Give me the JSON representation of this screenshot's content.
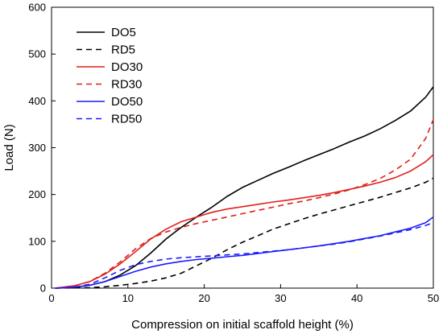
{
  "chart_data": {
    "type": "line",
    "title": "",
    "xlabel": "Compression on initial scaffold height (%)",
    "ylabel": "Load (N)",
    "xlim": [
      0,
      50
    ],
    "ylim": [
      0,
      600
    ],
    "xticks": [
      0,
      10,
      20,
      30,
      40,
      50
    ],
    "yticks": [
      0,
      100,
      200,
      300,
      400,
      500,
      600
    ],
    "grid": false,
    "legend_position": "top-left",
    "series": [
      {
        "name": "DO5",
        "color": "#000000",
        "dash": "solid",
        "points": [
          [
            0.5,
            0
          ],
          [
            3,
            2
          ],
          [
            5,
            6
          ],
          [
            7,
            14
          ],
          [
            9,
            28
          ],
          [
            11,
            48
          ],
          [
            13,
            75
          ],
          [
            15,
            105
          ],
          [
            17,
            130
          ],
          [
            19,
            152
          ],
          [
            21,
            173
          ],
          [
            23,
            196
          ],
          [
            25,
            215
          ],
          [
            27,
            230
          ],
          [
            29,
            245
          ],
          [
            31,
            258
          ],
          [
            33,
            272
          ],
          [
            35,
            285
          ],
          [
            37,
            298
          ],
          [
            39,
            312
          ],
          [
            41,
            325
          ],
          [
            43,
            340
          ],
          [
            45,
            358
          ],
          [
            47,
            378
          ],
          [
            49,
            408
          ],
          [
            50,
            430
          ]
        ]
      },
      {
        "name": "RD5",
        "color": "#000000",
        "dash": "dashed",
        "points": [
          [
            0.5,
            0
          ],
          [
            5,
            1
          ],
          [
            7,
            3
          ],
          [
            9,
            6
          ],
          [
            11,
            10
          ],
          [
            13,
            15
          ],
          [
            15,
            22
          ],
          [
            17,
            32
          ],
          [
            19,
            48
          ],
          [
            21,
            64
          ],
          [
            23,
            82
          ],
          [
            25,
            98
          ],
          [
            27,
            112
          ],
          [
            29,
            126
          ],
          [
            31,
            137
          ],
          [
            33,
            148
          ],
          [
            35,
            158
          ],
          [
            37,
            167
          ],
          [
            39,
            176
          ],
          [
            41,
            185
          ],
          [
            43,
            194
          ],
          [
            45,
            204
          ],
          [
            47,
            214
          ],
          [
            49,
            226
          ],
          [
            50,
            235
          ]
        ]
      },
      {
        "name": "DO30",
        "color": "#e0201c",
        "dash": "solid",
        "points": [
          [
            0.5,
            0
          ],
          [
            3,
            5
          ],
          [
            5,
            14
          ],
          [
            7,
            30
          ],
          [
            9,
            52
          ],
          [
            11,
            78
          ],
          [
            13,
            105
          ],
          [
            15,
            126
          ],
          [
            17,
            142
          ],
          [
            19,
            152
          ],
          [
            21,
            162
          ],
          [
            23,
            169
          ],
          [
            25,
            174
          ],
          [
            27,
            179
          ],
          [
            29,
            184
          ],
          [
            31,
            188
          ],
          [
            33,
            193
          ],
          [
            35,
            198
          ],
          [
            37,
            204
          ],
          [
            39,
            211
          ],
          [
            41,
            218
          ],
          [
            43,
            226
          ],
          [
            45,
            236
          ],
          [
            47,
            250
          ],
          [
            49,
            270
          ],
          [
            50,
            285
          ]
        ]
      },
      {
        "name": "RD30",
        "color": "#e0201c",
        "dash": "dashed",
        "points": [
          [
            0.5,
            0
          ],
          [
            3,
            5
          ],
          [
            5,
            14
          ],
          [
            7,
            32
          ],
          [
            9,
            56
          ],
          [
            11,
            84
          ],
          [
            13,
            106
          ],
          [
            15,
            120
          ],
          [
            17,
            130
          ],
          [
            19,
            138
          ],
          [
            21,
            145
          ],
          [
            23,
            152
          ],
          [
            25,
            159
          ],
          [
            27,
            166
          ],
          [
            29,
            173
          ],
          [
            31,
            180
          ],
          [
            33,
            186
          ],
          [
            35,
            193
          ],
          [
            37,
            201
          ],
          [
            39,
            210
          ],
          [
            41,
            221
          ],
          [
            43,
            234
          ],
          [
            45,
            252
          ],
          [
            47,
            275
          ],
          [
            49,
            320
          ],
          [
            50,
            360
          ]
        ]
      },
      {
        "name": "DO50",
        "color": "#1a1aff",
        "dash": "solid",
        "points": [
          [
            0.5,
            0
          ],
          [
            3,
            2
          ],
          [
            5,
            6
          ],
          [
            7,
            14
          ],
          [
            9,
            25
          ],
          [
            11,
            36
          ],
          [
            13,
            45
          ],
          [
            15,
            52
          ],
          [
            17,
            57
          ],
          [
            19,
            61
          ],
          [
            21,
            64
          ],
          [
            23,
            67
          ],
          [
            25,
            70
          ],
          [
            27,
            74
          ],
          [
            29,
            78
          ],
          [
            31,
            82
          ],
          [
            33,
            86
          ],
          [
            35,
            90
          ],
          [
            37,
            95
          ],
          [
            39,
            100
          ],
          [
            41,
            106
          ],
          [
            43,
            112
          ],
          [
            45,
            120
          ],
          [
            47,
            128
          ],
          [
            49,
            140
          ],
          [
            50,
            152
          ]
        ]
      },
      {
        "name": "RD50",
        "color": "#1a1aff",
        "dash": "dashed",
        "points": [
          [
            0.5,
            0
          ],
          [
            3,
            2
          ],
          [
            5,
            8
          ],
          [
            7,
            22
          ],
          [
            9,
            38
          ],
          [
            11,
            50
          ],
          [
            13,
            57
          ],
          [
            15,
            62
          ],
          [
            17,
            65
          ],
          [
            19,
            67
          ],
          [
            21,
            69
          ],
          [
            23,
            71
          ],
          [
            25,
            73
          ],
          [
            27,
            76
          ],
          [
            29,
            79
          ],
          [
            31,
            82
          ],
          [
            33,
            86
          ],
          [
            35,
            90
          ],
          [
            37,
            94
          ],
          [
            39,
            99
          ],
          [
            41,
            105
          ],
          [
            43,
            111
          ],
          [
            45,
            118
          ],
          [
            47,
            125
          ],
          [
            49,
            134
          ],
          [
            50,
            140
          ]
        ]
      }
    ]
  }
}
